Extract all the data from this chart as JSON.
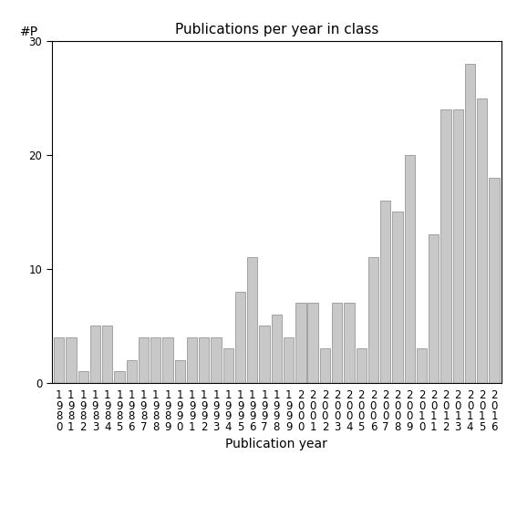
{
  "title": "Publications per year in class",
  "xlabel": "Publication year",
  "ylabel": "#P",
  "years": [
    1980,
    1981,
    1982,
    1983,
    1984,
    1985,
    1986,
    1987,
    1988,
    1989,
    1990,
    1991,
    1992,
    1993,
    1994,
    1995,
    1996,
    1997,
    1998,
    1999,
    2000,
    2001,
    2002,
    2003,
    2004,
    2005,
    2006,
    2007,
    2008,
    2009,
    2010,
    2011,
    2012,
    2013,
    2014,
    2015,
    2016
  ],
  "values": [
    4,
    4,
    1,
    5,
    5,
    1,
    2,
    4,
    4,
    4,
    2,
    4,
    4,
    4,
    3,
    8,
    11,
    5,
    6,
    4,
    7,
    7,
    3,
    7,
    7,
    3,
    11,
    16,
    15,
    20,
    3,
    13,
    24,
    24,
    28,
    25,
    18
  ],
  "bar_color": "#c8c8c8",
  "bar_edge_color": "#888888",
  "ylim": [
    0,
    30
  ],
  "yticks": [
    0,
    10,
    20,
    30
  ],
  "bg_color": "#ffffff",
  "title_fontsize": 11,
  "label_fontsize": 10,
  "tick_fontsize": 8.5
}
